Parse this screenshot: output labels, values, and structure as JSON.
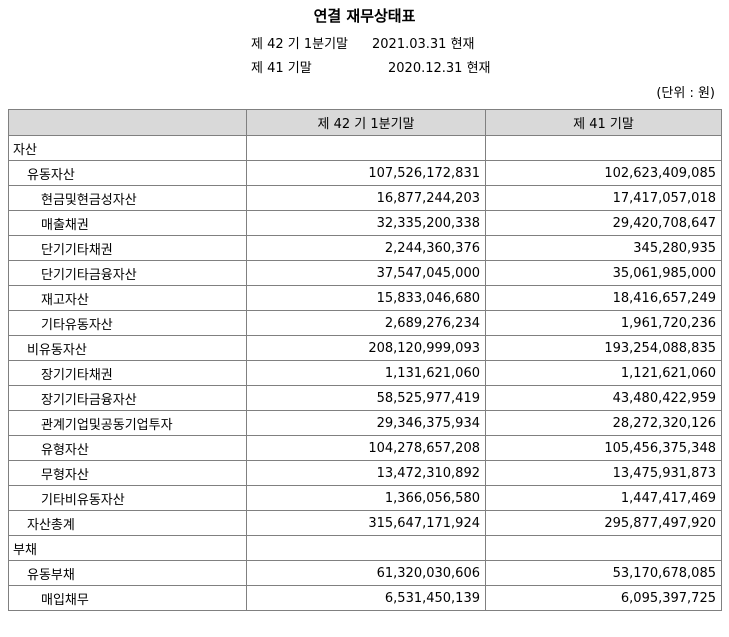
{
  "title": "연결 재무상태표",
  "periods": {
    "current_label": "제 42 기 1분기말",
    "current_date": "2021.03.31 현재",
    "prior_label": "제 41 기말",
    "prior_date": "2020.12.31 현재"
  },
  "unit": "(단위 : 원)",
  "table": {
    "headers": [
      "",
      "제 42 기 1분기말",
      "제 41 기말"
    ],
    "rows": [
      {
        "label": "자산",
        "level": 0,
        "current": "",
        "prior": ""
      },
      {
        "label": "유동자산",
        "level": 1,
        "current": "107,526,172,831",
        "prior": "102,623,409,085"
      },
      {
        "label": "현금및현금성자산",
        "level": 2,
        "current": "16,877,244,203",
        "prior": "17,417,057,018"
      },
      {
        "label": "매출채권",
        "level": 2,
        "current": "32,335,200,338",
        "prior": "29,420,708,647"
      },
      {
        "label": "단기기타채권",
        "level": 2,
        "current": "2,244,360,376",
        "prior": "345,280,935"
      },
      {
        "label": "단기기타금융자산",
        "level": 2,
        "current": "37,547,045,000",
        "prior": "35,061,985,000"
      },
      {
        "label": "재고자산",
        "level": 2,
        "current": "15,833,046,680",
        "prior": "18,416,657,249"
      },
      {
        "label": "기타유동자산",
        "level": 2,
        "current": "2,689,276,234",
        "prior": "1,961,720,236"
      },
      {
        "label": "비유동자산",
        "level": 1,
        "current": "208,120,999,093",
        "prior": "193,254,088,835"
      },
      {
        "label": "장기기타채권",
        "level": 2,
        "current": "1,131,621,060",
        "prior": "1,121,621,060"
      },
      {
        "label": "장기기타금융자산",
        "level": 2,
        "current": "58,525,977,419",
        "prior": "43,480,422,959"
      },
      {
        "label": "관계기업및공동기업투자",
        "level": 2,
        "current": "29,346,375,934",
        "prior": "28,272,320,126"
      },
      {
        "label": "유형자산",
        "level": 2,
        "current": "104,278,657,208",
        "prior": "105,456,375,348"
      },
      {
        "label": "무형자산",
        "level": 2,
        "current": "13,472,310,892",
        "prior": "13,475,931,873"
      },
      {
        "label": "기타비유동자산",
        "level": 2,
        "current": "1,366,056,580",
        "prior": "1,447,417,469"
      },
      {
        "label": "자산총계",
        "level": 1,
        "current": "315,647,171,924",
        "prior": "295,877,497,920"
      },
      {
        "label": "부채",
        "level": 0,
        "current": "",
        "prior": ""
      },
      {
        "label": "유동부채",
        "level": 1,
        "current": "61,320,030,606",
        "prior": "53,170,678,085"
      },
      {
        "label": "매입채무",
        "level": 2,
        "current": "6,531,450,139",
        "prior": "6,095,397,725"
      }
    ]
  }
}
